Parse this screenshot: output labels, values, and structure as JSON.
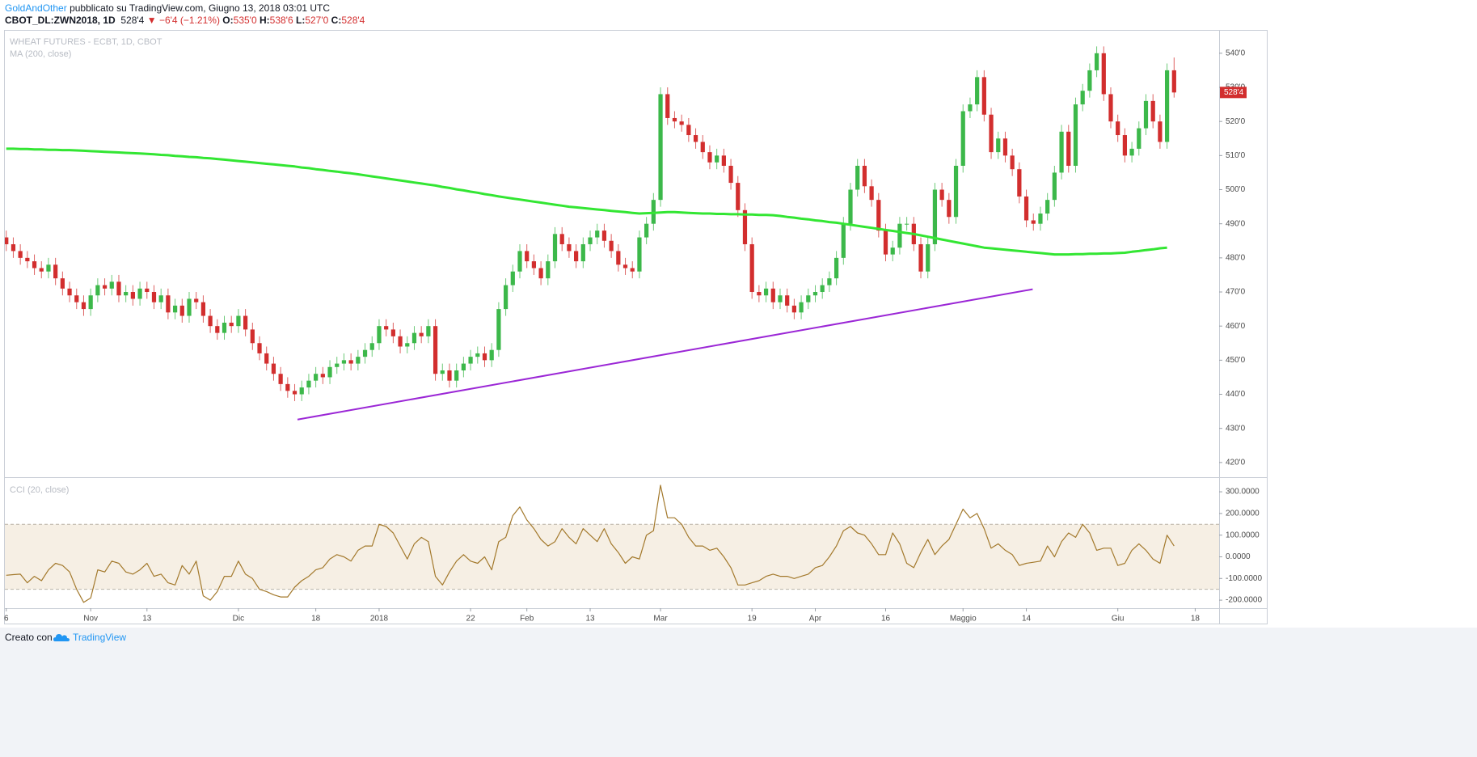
{
  "header": {
    "author": "GoldAndOther",
    "published": "pubblicato su TradingView.com, Giugno 13, 2018 03:01 UTC",
    "symbol": "CBOT_DL:ZWN2018, 1D",
    "last": "528'4",
    "arrow": "▼",
    "change": "−6'4 (−1.21%)",
    "ohlc": [
      {
        "label": "O:",
        "value": "535'0"
      },
      {
        "label": "H:",
        "value": "538'6"
      },
      {
        "label": "L:",
        "value": "527'0"
      },
      {
        "label": "C:",
        "value": "528'4"
      }
    ]
  },
  "footer": {
    "made_with": "Creato con",
    "brand": "TradingView"
  },
  "chart_data": [
    {
      "type": "candlestick",
      "title": "WHEAT FUTURES - ECBT, 1D, CBOT",
      "up_color": "#3cb84a",
      "down_color": "#d22e2e",
      "last_label": "528'4",
      "last_label_color": "#d22e2e",
      "xlim": [
        -0.2,
        172.4
      ],
      "ylim": [
        415.7,
        546.6
      ],
      "yticks": [
        {
          "value": 420,
          "label": "420'0"
        },
        {
          "value": 430,
          "label": "430'0"
        },
        {
          "value": 440,
          "label": "440'0"
        },
        {
          "value": 450,
          "label": "450'0"
        },
        {
          "value": 460,
          "label": "460'0"
        },
        {
          "value": 470,
          "label": "470'0"
        },
        {
          "value": 480,
          "label": "480'0"
        },
        {
          "value": 490,
          "label": "490'0"
        },
        {
          "value": 500,
          "label": "500'0"
        },
        {
          "value": 510,
          "label": "510'0"
        },
        {
          "value": 520,
          "label": "520'0"
        },
        {
          "value": 530,
          "label": "530'0"
        },
        {
          "value": 540,
          "label": "540'0"
        }
      ],
      "open": [
        486,
        484,
        482,
        480,
        479,
        477,
        476,
        478,
        474,
        471,
        469,
        467,
        465,
        469,
        472,
        471,
        473,
        469,
        470,
        468,
        471,
        470,
        467,
        469,
        464,
        466,
        463,
        468,
        467,
        463,
        460,
        458,
        461,
        460,
        463,
        459,
        455,
        452,
        449,
        446,
        443,
        441,
        440,
        442,
        444,
        446,
        445,
        448,
        449,
        450,
        449,
        451,
        453,
        455,
        460,
        459,
        457,
        454,
        455,
        458,
        457,
        460,
        446,
        447,
        444,
        447,
        449,
        451,
        452,
        450,
        453,
        465,
        472,
        476,
        482,
        479,
        477,
        474,
        479,
        487,
        484,
        482,
        479,
        484,
        486,
        488,
        485,
        482,
        478,
        477,
        476,
        486,
        490,
        497,
        528,
        521,
        520,
        519,
        516,
        514,
        511,
        508,
        510,
        507,
        502,
        494,
        484,
        470,
        469,
        471,
        467,
        469,
        466,
        464,
        467,
        469,
        470,
        472,
        474,
        480,
        490,
        500,
        507,
        501,
        497,
        488,
        481,
        483,
        490,
        490,
        484,
        476,
        484,
        500,
        497,
        492,
        507,
        523,
        525,
        533,
        522,
        511,
        515,
        510,
        506,
        498,
        491,
        490,
        493,
        497,
        505,
        517,
        507,
        525,
        529,
        535,
        540,
        528,
        520,
        516,
        510,
        512,
        518,
        526,
        520,
        514,
        535
      ],
      "high": [
        488,
        486,
        484,
        482,
        481,
        479,
        480,
        480,
        476,
        473,
        471,
        469,
        471,
        474,
        474,
        475,
        475,
        472,
        472,
        473,
        473,
        472,
        471,
        471,
        468,
        468,
        470,
        470,
        469,
        465,
        462,
        463,
        463,
        465,
        465,
        461,
        457,
        454,
        451,
        448,
        445,
        443,
        444,
        446,
        448,
        448,
        450,
        451,
        452,
        452,
        453,
        455,
        457,
        462,
        462,
        461,
        459,
        457,
        460,
        460,
        462,
        462,
        449,
        449,
        449,
        451,
        453,
        454,
        454,
        455,
        467,
        474,
        478,
        484,
        484,
        481,
        479,
        481,
        489,
        489,
        486,
        484,
        486,
        488,
        490,
        490,
        487,
        484,
        480,
        479,
        488,
        492,
        499,
        530,
        530,
        523,
        522,
        521,
        518,
        516,
        513,
        512,
        512,
        509,
        504,
        496,
        486,
        472,
        473,
        473,
        471,
        471,
        468,
        469,
        471,
        472,
        474,
        476,
        482,
        492,
        502,
        509,
        509,
        503,
        499,
        490,
        485,
        492,
        492,
        492,
        486,
        486,
        502,
        502,
        499,
        509,
        525,
        527,
        535,
        535,
        524,
        517,
        517,
        512,
        508,
        500,
        493,
        495,
        499,
        507,
        519,
        519,
        527,
        531,
        537,
        542,
        542,
        530,
        522,
        518,
        514,
        520,
        528,
        528,
        522,
        537,
        538.75
      ],
      "low": [
        482,
        480,
        478,
        477,
        475,
        474,
        474,
        472,
        469,
        467,
        465,
        463,
        463,
        467,
        469,
        469,
        467,
        467,
        466,
        466,
        468,
        465,
        465,
        462,
        462,
        461,
        461,
        465,
        461,
        458,
        456,
        456,
        458,
        458,
        457,
        453,
        450,
        447,
        444,
        441,
        439,
        438,
        438,
        440,
        442,
        443,
        443,
        446,
        447,
        447,
        447,
        449,
        451,
        453,
        457,
        455,
        452,
        452,
        453,
        455,
        455,
        444,
        444,
        442,
        442,
        445,
        447,
        449,
        448,
        448,
        451,
        463,
        470,
        474,
        477,
        475,
        472,
        472,
        477,
        482,
        480,
        477,
        477,
        482,
        484,
        483,
        480,
        476,
        475,
        474,
        474,
        484,
        488,
        495,
        519,
        518,
        517,
        514,
        512,
        509,
        506,
        506,
        505,
        500,
        492,
        482,
        468,
        467,
        467,
        465,
        465,
        464,
        462,
        462,
        465,
        467,
        468,
        470,
        472,
        478,
        488,
        498,
        499,
        495,
        486,
        479,
        479,
        481,
        488,
        482,
        474,
        474,
        482,
        495,
        490,
        490,
        505,
        521,
        523,
        520,
        509,
        509,
        508,
        504,
        496,
        489,
        488,
        488,
        491,
        495,
        503,
        505,
        505,
        523,
        527,
        533,
        526,
        518,
        514,
        508,
        508,
        510,
        516,
        518,
        512,
        512,
        527
      ],
      "close": [
        484,
        482,
        480,
        479,
        477,
        476,
        478,
        474,
        471,
        469,
        467,
        465,
        469,
        472,
        471,
        473,
        469,
        470,
        468,
        471,
        470,
        467,
        469,
        464,
        466,
        463,
        468,
        467,
        463,
        460,
        458,
        461,
        460,
        463,
        459,
        455,
        452,
        449,
        446,
        443,
        441,
        440,
        442,
        444,
        446,
        445,
        448,
        449,
        450,
        449,
        451,
        453,
        455,
        460,
        459,
        457,
        454,
        455,
        458,
        457,
        460,
        446,
        447,
        444,
        447,
        449,
        451,
        452,
        450,
        453,
        465,
        472,
        476,
        482,
        479,
        477,
        474,
        479,
        487,
        484,
        482,
        479,
        484,
        486,
        488,
        485,
        482,
        478,
        477,
        476,
        486,
        490,
        497,
        528,
        521,
        520,
        519,
        516,
        514,
        511,
        508,
        510,
        507,
        502,
        494,
        484,
        470,
        469,
        471,
        467,
        469,
        466,
        464,
        467,
        469,
        470,
        472,
        474,
        480,
        490,
        500,
        507,
        501,
        497,
        488,
        481,
        483,
        490,
        490,
        484,
        476,
        484,
        500,
        497,
        492,
        507,
        523,
        525,
        533,
        522,
        511,
        515,
        510,
        506,
        498,
        491,
        490,
        493,
        497,
        505,
        517,
        507,
        525,
        529,
        535,
        540,
        528,
        520,
        516,
        510,
        512,
        518,
        526,
        520,
        514,
        535,
        528.5
      ],
      "series": [
        {
          "name": "MA (200, close)",
          "color": "#33e633",
          "values": [
            512,
            512,
            511.9,
            511.9,
            511.8,
            511.8,
            511.7,
            511.7,
            511.6,
            511.6,
            511.5,
            511.4,
            511.3,
            511.2,
            511.1,
            511,
            510.9,
            510.8,
            510.7,
            510.6,
            510.5,
            510.4,
            510.2,
            510.1,
            509.9,
            509.8,
            509.6,
            509.5,
            509.3,
            509.2,
            509,
            508.8,
            508.6,
            508.4,
            508.2,
            508,
            507.8,
            507.6,
            507.4,
            507.2,
            507,
            506.8,
            506.5,
            506.3,
            506,
            505.8,
            505.5,
            505.3,
            505,
            504.8,
            504.5,
            504.2,
            503.9,
            503.6,
            503.3,
            503,
            502.7,
            502.4,
            502.1,
            501.8,
            501.5,
            501.2,
            500.8,
            500.5,
            500.1,
            499.8,
            499.4,
            499.1,
            498.7,
            498.4,
            498,
            497.7,
            497.4,
            497.1,
            496.8,
            496.5,
            496.2,
            495.9,
            495.6,
            495.3,
            495,
            494.8,
            494.6,
            494.4,
            494.2,
            494,
            493.8,
            493.6,
            493.4,
            493.2,
            493,
            493.1,
            493.2,
            493.3,
            493.4,
            493.4,
            493.3,
            493.2,
            493.1,
            493,
            493,
            492.9,
            492.9,
            492.8,
            492.8,
            492.7,
            492.7,
            492.6,
            492.6,
            492.5,
            492.3,
            492,
            491.8,
            491.5,
            491.3,
            491,
            490.8,
            490.5,
            490.3,
            490,
            489.7,
            489.4,
            489.1,
            488.8,
            488.5,
            488.2,
            487.9,
            487.6,
            487.3,
            487,
            486.6,
            486.2,
            485.8,
            485.4,
            485,
            484.6,
            484.2,
            483.8,
            483.4,
            483,
            482.8,
            482.6,
            482.4,
            482.2,
            482,
            481.8,
            481.6,
            481.4,
            481.2,
            481,
            481,
            481,
            481.1,
            481.1,
            481.2,
            481.2,
            481.3,
            481.3,
            481.4,
            481.5,
            481.8,
            482,
            482.3,
            482.5,
            482.8,
            483
          ]
        }
      ],
      "trendline": {
        "color": "#9b27d6",
        "x": [
          41.4,
          145.9
        ],
        "values": [
          432.6,
          470.8
        ]
      }
    },
    {
      "type": "line",
      "xlim": [
        -0.2,
        172.4
      ],
      "ylim": [
        -237,
        360
      ],
      "yticks": [
        {
          "value": 300,
          "label": "300.0000"
        },
        {
          "value": 200,
          "label": "200.0000"
        },
        {
          "value": 100,
          "label": "100.0000"
        },
        {
          "value": 0,
          "label": "0.0000"
        },
        {
          "value": -100,
          "label": "-100.0000"
        },
        {
          "value": -200,
          "label": "-200.0000"
        }
      ],
      "band": [
        -150,
        150
      ],
      "band_color": "#f6efe4",
      "xticks": [
        {
          "value": 0,
          "label": "6"
        },
        {
          "value": 12,
          "label": "Nov"
        },
        {
          "value": 20,
          "label": "13"
        },
        {
          "value": 33,
          "label": "Dic"
        },
        {
          "value": 44,
          "label": "18"
        },
        {
          "value": 53,
          "label": "2018"
        },
        {
          "value": 66,
          "label": "22"
        },
        {
          "value": 74,
          "label": "Feb"
        },
        {
          "value": 83,
          "label": "13"
        },
        {
          "value": 93,
          "label": "Mar"
        },
        {
          "value": 106,
          "label": "19"
        },
        {
          "value": 115,
          "label": "Apr"
        },
        {
          "value": 125,
          "label": "16"
        },
        {
          "value": 136,
          "label": "Maggio"
        },
        {
          "value": 145,
          "label": "14"
        },
        {
          "value": 158,
          "label": "Giu"
        },
        {
          "value": 169,
          "label": "18"
        }
      ],
      "series": [
        {
          "name": "CCI (20, close)",
          "color": "#a3792c",
          "values": [
            -85,
            -82,
            -80,
            -120,
            -90,
            -110,
            -60,
            -30,
            -40,
            -70,
            -150,
            -210,
            -190,
            -60,
            -70,
            -20,
            -30,
            -70,
            -80,
            -60,
            -30,
            -90,
            -80,
            -120,
            -130,
            -40,
            -80,
            -20,
            -180,
            -200,
            -160,
            -90,
            -90,
            -20,
            -80,
            -100,
            -150,
            -160,
            -175,
            -185,
            -185,
            -140,
            -110,
            -90,
            -60,
            -50,
            -10,
            10,
            0,
            -20,
            30,
            50,
            50,
            150,
            140,
            110,
            50,
            -10,
            60,
            90,
            70,
            -90,
            -130,
            -70,
            -20,
            10,
            -20,
            -30,
            0,
            -60,
            70,
            90,
            190,
            230,
            170,
            130,
            80,
            50,
            70,
            130,
            90,
            60,
            130,
            100,
            70,
            130,
            60,
            20,
            -30,
            0,
            -10,
            100,
            120,
            330,
            180,
            180,
            150,
            90,
            50,
            50,
            30,
            40,
            0,
            -50,
            -130,
            -130,
            -120,
            -110,
            -90,
            -80,
            -90,
            -90,
            -100,
            -90,
            -80,
            -50,
            -40,
            0,
            50,
            120,
            140,
            110,
            100,
            60,
            10,
            10,
            110,
            60,
            -30,
            -50,
            20,
            80,
            10,
            50,
            80,
            150,
            220,
            180,
            200,
            130,
            40,
            60,
            30,
            10,
            -40,
            -30,
            -25,
            -20,
            50,
            0,
            70,
            110,
            90,
            150,
            110,
            30,
            40,
            40,
            -40,
            -30,
            30,
            60,
            30,
            -10,
            -30,
            100,
            50
          ]
        }
      ]
    }
  ]
}
